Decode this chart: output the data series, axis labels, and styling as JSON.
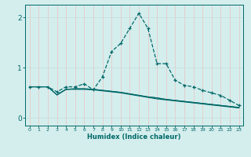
{
  "title": "",
  "xlabel": "Humidex (Indice chaleur)",
  "bg_color": "#d4eeed",
  "grid_color_v": "#e8c8c8",
  "grid_color_h": "#c8dede",
  "line_color": "#006868",
  "spine_color": "#006868",
  "x_ticks": [
    0,
    1,
    2,
    3,
    4,
    5,
    6,
    7,
    8,
    9,
    10,
    11,
    12,
    13,
    14,
    15,
    16,
    17,
    18,
    19,
    20,
    21,
    22,
    23
  ],
  "y_ticks": [
    0,
    1,
    2
  ],
  "xlim": [
    -0.5,
    23.5
  ],
  "ylim": [
    -0.15,
    2.25
  ],
  "curve1_x": [
    0,
    1,
    2,
    3,
    4,
    5,
    6,
    7,
    8,
    9,
    10,
    11,
    12,
    13,
    14,
    15,
    16,
    17,
    18,
    19,
    20,
    21,
    22,
    23
  ],
  "curve1_y": [
    0.62,
    0.62,
    0.62,
    0.52,
    0.62,
    0.62,
    0.68,
    0.56,
    0.82,
    1.32,
    1.48,
    1.78,
    2.08,
    1.78,
    1.08,
    1.08,
    0.75,
    0.65,
    0.62,
    0.55,
    0.5,
    0.45,
    0.35,
    0.25
  ],
  "curve2_x": [
    0,
    1,
    2,
    3,
    4,
    5,
    6,
    7,
    8,
    9,
    10,
    11,
    12,
    13,
    14,
    15,
    16,
    17,
    18,
    19,
    20,
    21,
    22,
    23
  ],
  "curve2_y": [
    0.62,
    0.62,
    0.62,
    0.46,
    0.57,
    0.57,
    0.57,
    0.56,
    0.54,
    0.52,
    0.5,
    0.47,
    0.44,
    0.41,
    0.38,
    0.36,
    0.34,
    0.32,
    0.3,
    0.28,
    0.26,
    0.24,
    0.22,
    0.2
  ],
  "curve3_x": [
    0,
    1,
    2,
    3,
    4,
    5,
    6,
    7,
    8,
    9,
    10,
    11,
    12,
    13,
    14,
    15,
    16,
    17,
    18,
    19,
    20,
    21,
    22,
    23
  ],
  "curve3_y": [
    0.62,
    0.62,
    0.62,
    0.46,
    0.57,
    0.58,
    0.58,
    0.57,
    0.55,
    0.53,
    0.51,
    0.48,
    0.45,
    0.42,
    0.4,
    0.37,
    0.35,
    0.33,
    0.31,
    0.29,
    0.27,
    0.25,
    0.23,
    0.21
  ],
  "curve4_x": [
    3,
    4,
    5,
    6,
    7,
    8,
    9,
    10,
    11,
    12,
    13,
    14,
    15,
    16,
    17,
    18,
    19,
    20,
    21,
    22,
    23
  ],
  "curve4_y": [
    0.46,
    0.57,
    0.58,
    0.58,
    0.57,
    0.55,
    0.53,
    0.51,
    0.48,
    0.45,
    0.42,
    0.4,
    0.37,
    0.35,
    0.33,
    0.31,
    0.29,
    0.27,
    0.25,
    0.23,
    0.21
  ]
}
